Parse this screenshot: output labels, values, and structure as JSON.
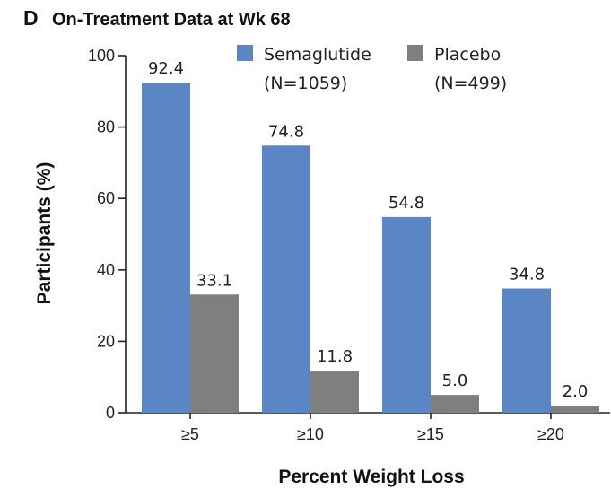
{
  "panel": "D",
  "chart_data": {
    "type": "bar",
    "title": "On-Treatment Data at Wk 68",
    "xlabel": "Percent Weight Loss",
    "ylabel": "Participants (%)",
    "ylim": [
      0,
      100
    ],
    "yticks": [
      "0",
      "20",
      "40",
      "60",
      "80",
      "100"
    ],
    "categories": [
      "≥5",
      "≥10",
      "≥15",
      "≥20"
    ],
    "series": [
      {
        "name": "Semaglutide",
        "sub": "(N=1059)",
        "color": "#5b86c5",
        "values": [
          92.4,
          74.8,
          54.8,
          34.8
        ],
        "labels": [
          "92.4",
          "74.8",
          "54.8",
          "34.8"
        ]
      },
      {
        "name": "Placebo",
        "sub": "(N=499)",
        "color": "#7f7f7f",
        "values": [
          33.1,
          11.8,
          5.0,
          2.0
        ],
        "labels": [
          "33.1",
          "11.8",
          "5.0",
          "2.0"
        ]
      }
    ],
    "legend_position": "top-right",
    "grid": false
  }
}
